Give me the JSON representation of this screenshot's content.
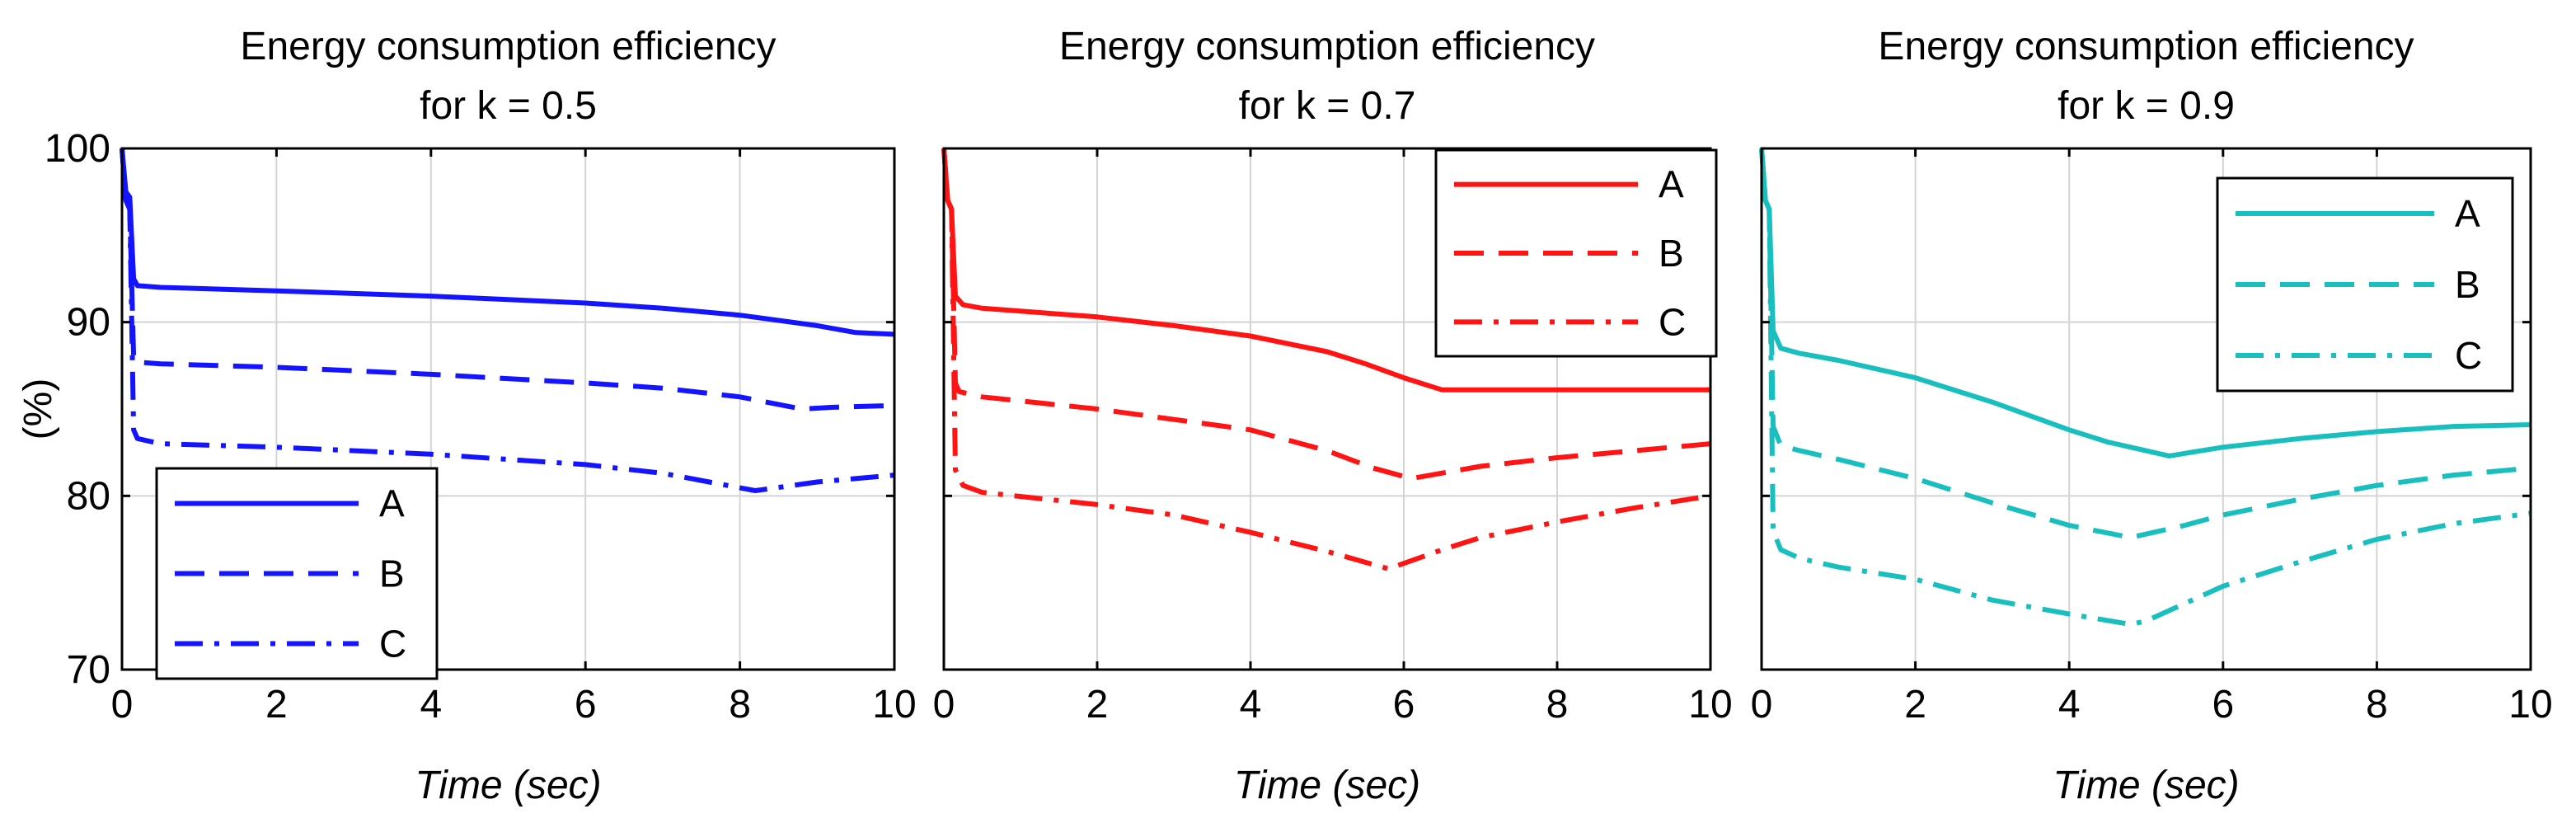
{
  "chart_data": [
    {
      "type": "line",
      "title": [
        "Energy consumption efficiency",
        "for k = 0.5"
      ],
      "xlabel": "Time (sec)",
      "ylabel": "(%)",
      "xlim": [
        0,
        10
      ],
      "ylim": [
        70,
        100
      ],
      "xticks": [
        0,
        2,
        4,
        6,
        8,
        10
      ],
      "yticks": [
        70,
        80,
        90,
        100
      ],
      "ytick_labels_visible": true,
      "grid": true,
      "color": "#1414ff",
      "legend_position": "bottom-left",
      "series": [
        {
          "name": "A",
          "dash": "solid",
          "x": [
            0,
            0.05,
            0.1,
            0.15,
            0.2,
            0.5,
            2,
            4,
            6,
            7,
            8,
            9,
            9.5,
            10
          ],
          "y": [
            100,
            97.5,
            97.2,
            92.5,
            92.1,
            92.0,
            91.8,
            91.5,
            91.1,
            90.8,
            90.4,
            89.8,
            89.4,
            89.3
          ]
        },
        {
          "name": "B",
          "dash": "dashed",
          "x": [
            0,
            0.05,
            0.1,
            0.15,
            0.2,
            0.5,
            2,
            4,
            6,
            7,
            8,
            8.8,
            9.2,
            10
          ],
          "y": [
            100,
            97,
            96.5,
            88.0,
            87.7,
            87.6,
            87.4,
            87.0,
            86.5,
            86.2,
            85.7,
            85.0,
            85.1,
            85.2
          ]
        },
        {
          "name": "C",
          "dash": "dashdot",
          "x": [
            0,
            0.05,
            0.1,
            0.15,
            0.2,
            0.5,
            2,
            4,
            6,
            7,
            8.2,
            9,
            10
          ],
          "y": [
            100,
            97,
            96.5,
            83.8,
            83.3,
            83.0,
            82.8,
            82.4,
            81.8,
            81.3,
            80.3,
            80.8,
            81.2
          ]
        }
      ]
    },
    {
      "type": "line",
      "title": [
        "Energy consumption efficiency",
        "for k = 0.7"
      ],
      "xlabel": "Time (sec)",
      "ylabel": "",
      "xlim": [
        0,
        10
      ],
      "ylim": [
        70,
        100
      ],
      "xticks": [
        0,
        2,
        4,
        6,
        8,
        10
      ],
      "yticks": [
        70,
        80,
        90,
        100
      ],
      "ytick_labels_visible": false,
      "grid": true,
      "color": "#ff1414",
      "legend_position": "top-right",
      "series": [
        {
          "name": "A",
          "dash": "solid",
          "x": [
            0,
            0.05,
            0.1,
            0.15,
            0.25,
            0.5,
            2,
            3,
            4,
            5,
            5.5,
            6,
            6.5,
            7,
            8,
            10
          ],
          "y": [
            100,
            97,
            96.5,
            91.5,
            91.0,
            90.8,
            90.3,
            89.8,
            89.2,
            88.3,
            87.6,
            86.8,
            86.1,
            86.1,
            86.1,
            86.1
          ]
        },
        {
          "name": "B",
          "dash": "dashed",
          "x": [
            0,
            0.05,
            0.1,
            0.15,
            0.2,
            0.5,
            2,
            4,
            5,
            5.6,
            6.1,
            7,
            8,
            9,
            10
          ],
          "y": [
            100,
            97,
            96.5,
            86.5,
            86.0,
            85.7,
            85.0,
            83.8,
            82.6,
            81.6,
            81.0,
            81.7,
            82.2,
            82.6,
            83.0
          ]
        },
        {
          "name": "C",
          "dash": "dashdot",
          "x": [
            0,
            0.05,
            0.1,
            0.15,
            0.25,
            0.5,
            2,
            3,
            4,
            5,
            5.8,
            6.5,
            7,
            8,
            9,
            10
          ],
          "y": [
            100,
            97,
            96.5,
            81.5,
            80.6,
            80.2,
            79.5,
            78.9,
            77.9,
            76.8,
            75.8,
            76.9,
            77.6,
            78.5,
            79.3,
            80.0
          ]
        }
      ]
    },
    {
      "type": "line",
      "title": [
        "Energy consumption efficiency",
        "for k = 0.9"
      ],
      "xlabel": "Time (sec)",
      "ylabel": "",
      "xlim": [
        0,
        10
      ],
      "ylim": [
        70,
        100
      ],
      "xticks": [
        0,
        2,
        4,
        6,
        8,
        10
      ],
      "yticks": [
        70,
        80,
        90,
        100
      ],
      "ytick_labels_visible": false,
      "grid": true,
      "color": "#19bfbf",
      "legend_position": "top-right",
      "series": [
        {
          "name": "A",
          "dash": "solid",
          "x": [
            0,
            0.05,
            0.1,
            0.15,
            0.25,
            0.5,
            1,
            2,
            3,
            4,
            4.5,
            5,
            5.3,
            6,
            7,
            8,
            9,
            10
          ],
          "y": [
            100,
            97,
            96.5,
            89.5,
            88.5,
            88.2,
            87.8,
            86.8,
            85.4,
            83.8,
            83.1,
            82.6,
            82.3,
            82.8,
            83.3,
            83.7,
            84.0,
            84.1
          ]
        },
        {
          "name": "B",
          "dash": "dashed",
          "x": [
            0,
            0.05,
            0.1,
            0.15,
            0.25,
            0.5,
            1,
            2,
            3,
            4,
            4.8,
            5.5,
            6,
            7,
            8,
            9,
            10
          ],
          "y": [
            100,
            97,
            96.5,
            84.0,
            82.9,
            82.6,
            82.1,
            81.0,
            79.6,
            78.3,
            77.6,
            78.3,
            78.9,
            79.8,
            80.6,
            81.2,
            81.6
          ]
        },
        {
          "name": "C",
          "dash": "dashdot",
          "x": [
            0,
            0.05,
            0.1,
            0.15,
            0.25,
            0.5,
            1,
            2,
            3,
            4,
            4.8,
            5,
            6,
            7,
            8,
            9,
            10
          ],
          "y": [
            100,
            97,
            96.5,
            78.0,
            76.9,
            76.4,
            75.9,
            75.2,
            74.0,
            73.2,
            72.6,
            72.8,
            74.8,
            76.2,
            77.5,
            78.4,
            79.0
          ]
        }
      ]
    }
  ]
}
